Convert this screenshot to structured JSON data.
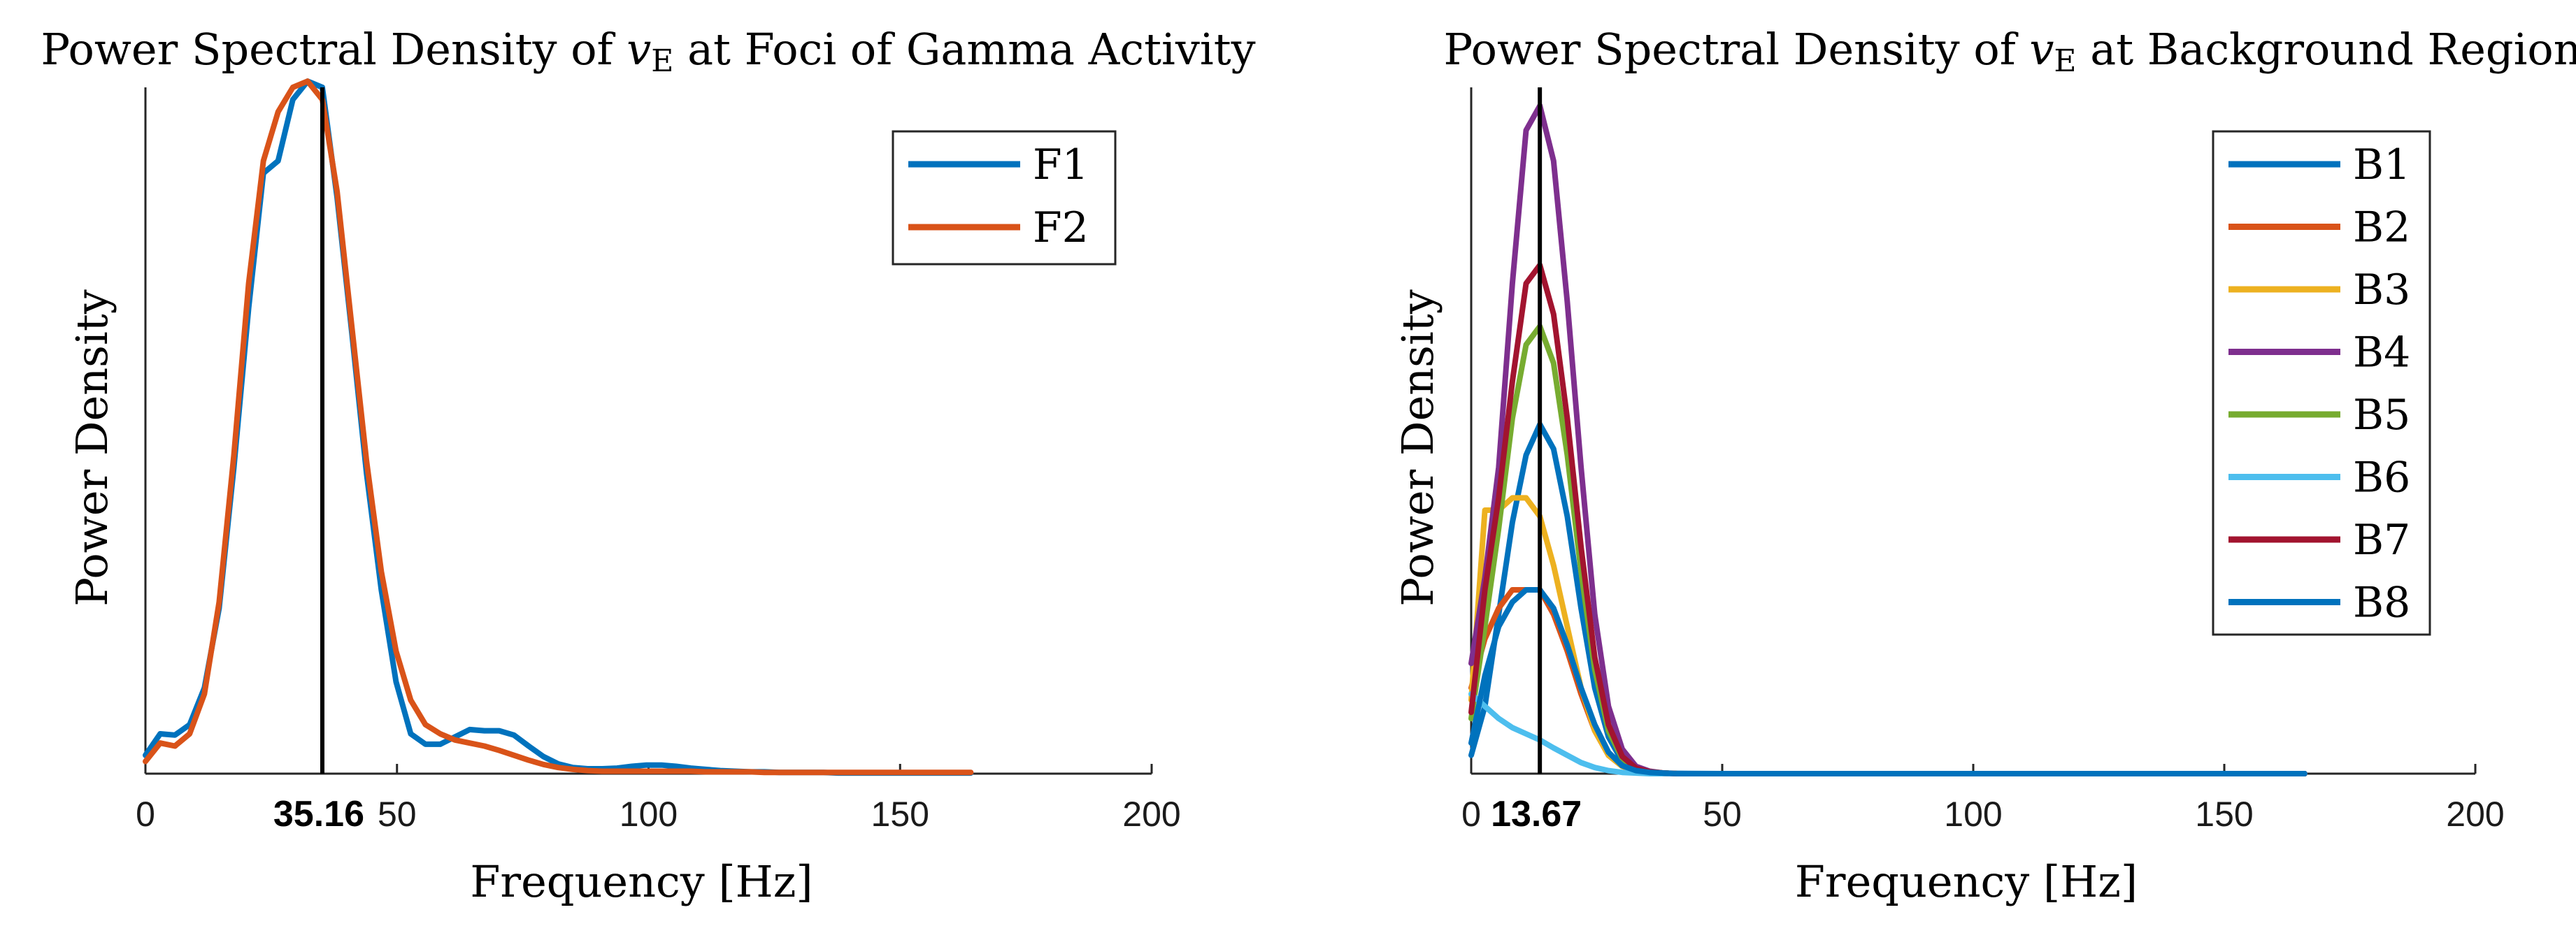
{
  "chart_data": [
    {
      "type": "line",
      "title_prefix": "Power Spectral Density of ",
      "title_var": "v",
      "title_sub": "E",
      "title_suffix": " at Foci of Gamma Activity",
      "xlabel": "Frequency [Hz]",
      "ylabel": "Power Density",
      "xlim": [
        0,
        200
      ],
      "ylim": [
        0,
        1.12
      ],
      "xticks": [
        0,
        50,
        100,
        150,
        200
      ],
      "xtick_labels": [
        "0",
        "50",
        "100",
        "150",
        "200"
      ],
      "marker_x": 35.16,
      "marker_label": "35.16",
      "legend_position": "top-right",
      "series": [
        {
          "name": "F1",
          "color": "#0072BD",
          "x": [
            0,
            2.93,
            5.86,
            8.79,
            11.72,
            14.65,
            17.58,
            20.51,
            23.44,
            26.37,
            29.3,
            32.23,
            35.16,
            38.09,
            41.02,
            43.95,
            46.88,
            49.81,
            52.73,
            55.66,
            58.59,
            61.52,
            64.45,
            67.38,
            70.31,
            73.24,
            76.17,
            79.1,
            82.03,
            84.96,
            87.89,
            90.82,
            93.75,
            96.68,
            99.61,
            102.54,
            105.47,
            108.4,
            111.33,
            114.26,
            117.19,
            120.12,
            123.05,
            125.98,
            128.91,
            131.84,
            134.77,
            137.7,
            140.63,
            143.55,
            146.48,
            149.41,
            152.34,
            155.27,
            158.2,
            161.13,
            164.06
          ],
          "y": [
            0.03,
            0.065,
            0.063,
            0.08,
            0.14,
            0.27,
            0.5,
            0.76,
            0.98,
            1.0,
            1.1,
            1.13,
            1.12,
            0.94,
            0.72,
            0.49,
            0.3,
            0.15,
            0.065,
            0.048,
            0.048,
            0.06,
            0.072,
            0.07,
            0.07,
            0.063,
            0.045,
            0.028,
            0.016,
            0.01,
            0.008,
            0.008,
            0.009,
            0.012,
            0.014,
            0.014,
            0.012,
            0.009,
            0.007,
            0.005,
            0.004,
            0.003,
            0.003,
            0.002,
            0.002,
            0.002,
            0.002,
            0.001,
            0.001,
            0.001,
            0.001,
            0.001,
            0.001,
            0.001,
            0.001,
            0.001,
            0.001
          ]
        },
        {
          "name": "F2",
          "color": "#D95319",
          "x": [
            0,
            2.93,
            5.86,
            8.79,
            11.72,
            14.65,
            17.58,
            20.51,
            23.44,
            26.37,
            29.3,
            32.23,
            35.16,
            38.09,
            41.02,
            43.95,
            46.88,
            49.81,
            52.73,
            55.66,
            58.59,
            61.52,
            64.45,
            67.38,
            70.31,
            73.24,
            76.17,
            79.1,
            82.03,
            84.96,
            87.89,
            90.82,
            93.75,
            96.68,
            99.61,
            102.54,
            105.47,
            108.4,
            111.33,
            114.26,
            117.19,
            120.12,
            123.05,
            125.98,
            128.91,
            131.84,
            134.77,
            137.7,
            140.63,
            143.55,
            146.48,
            149.41,
            152.34,
            155.27,
            158.2,
            161.13,
            164.06
          ],
          "y": [
            0.02,
            0.05,
            0.045,
            0.065,
            0.13,
            0.28,
            0.52,
            0.8,
            1.0,
            1.08,
            1.12,
            1.13,
            1.1,
            0.95,
            0.73,
            0.51,
            0.33,
            0.2,
            0.12,
            0.08,
            0.065,
            0.055,
            0.05,
            0.045,
            0.038,
            0.03,
            0.022,
            0.015,
            0.01,
            0.007,
            0.005,
            0.004,
            0.004,
            0.004,
            0.004,
            0.004,
            0.004,
            0.004,
            0.003,
            0.003,
            0.003,
            0.003,
            0.002,
            0.002,
            0.002,
            0.002,
            0.002,
            0.002,
            0.002,
            0.002,
            0.002,
            0.002,
            0.002,
            0.002,
            0.002,
            0.002,
            0.002
          ]
        }
      ]
    },
    {
      "type": "line",
      "title_prefix": "Power Spectral Density of ",
      "title_var": "v",
      "title_sub": "E",
      "title_suffix": " at Background Regions",
      "xlabel": "Frequency [Hz]",
      "ylabel": "Power Density",
      "xlim": [
        0,
        200
      ],
      "ylim": [
        0,
        1.12
      ],
      "xticks": [
        0,
        50,
        100,
        150,
        200
      ],
      "xtick_labels": [
        "0",
        "50",
        "100",
        "150",
        "200"
      ],
      "marker_x": 13.67,
      "marker_label": "13.67",
      "legend_position": "top-right",
      "series": [
        {
          "name": "B1",
          "color": "#0072BD",
          "x": [
            0,
            2.73,
            5.47,
            8.2,
            10.94,
            13.67,
            16.41,
            19.14,
            21.88,
            24.61,
            27.34,
            30.08,
            32.81,
            35.55,
            38.28,
            41.02,
            50,
            75,
            100,
            125,
            150,
            166
          ],
          "y": [
            0.03,
            0.11,
            0.26,
            0.41,
            0.52,
            0.57,
            0.53,
            0.42,
            0.27,
            0.14,
            0.06,
            0.02,
            0.008,
            0.003,
            0.001,
            0.0005,
            0,
            0,
            0,
            0,
            0,
            0
          ]
        },
        {
          "name": "B2",
          "color": "#D95319",
          "x": [
            0,
            2.73,
            5.47,
            8.2,
            10.94,
            13.67,
            16.41,
            19.14,
            21.88,
            24.61,
            27.34,
            30.08,
            32.81,
            35.55,
            38.28,
            41.02,
            50,
            75,
            100,
            125,
            150,
            166
          ],
          "y": [
            0.14,
            0.22,
            0.27,
            0.3,
            0.3,
            0.3,
            0.26,
            0.2,
            0.13,
            0.07,
            0.03,
            0.012,
            0.004,
            0.002,
            0.001,
            0,
            0,
            0,
            0,
            0,
            0,
            0
          ]
        },
        {
          "name": "B3",
          "color": "#EDB120",
          "x": [
            0,
            2.73,
            5.47,
            8.2,
            10.94,
            13.67,
            16.41,
            19.14,
            21.88,
            24.61,
            27.34,
            30.08,
            32.81,
            35.55,
            38.28,
            41.02,
            50,
            75,
            100,
            125,
            150,
            166
          ],
          "y": [
            0.12,
            0.43,
            0.43,
            0.45,
            0.45,
            0.42,
            0.34,
            0.24,
            0.14,
            0.07,
            0.03,
            0.012,
            0.004,
            0.002,
            0.001,
            0,
            0,
            0,
            0,
            0,
            0,
            0
          ]
        },
        {
          "name": "B4",
          "color": "#7E2F8E",
          "x": [
            0,
            2.73,
            5.47,
            8.2,
            10.94,
            13.67,
            16.41,
            19.14,
            21.88,
            24.61,
            27.34,
            30.08,
            32.81,
            35.55,
            38.28,
            41.02,
            50,
            75,
            100,
            125,
            150,
            166
          ],
          "y": [
            0.18,
            0.32,
            0.5,
            0.8,
            1.05,
            1.09,
            1.0,
            0.77,
            0.5,
            0.26,
            0.11,
            0.04,
            0.012,
            0.004,
            0.001,
            0,
            0,
            0,
            0,
            0,
            0,
            0
          ]
        },
        {
          "name": "B5",
          "color": "#77AC30",
          "x": [
            0,
            2.73,
            5.47,
            8.2,
            10.94,
            13.67,
            16.41,
            19.14,
            21.88,
            24.61,
            27.34,
            30.08,
            32.81,
            35.55,
            38.28,
            41.02,
            50,
            75,
            100,
            125,
            150,
            166
          ],
          "y": [
            0.09,
            0.24,
            0.4,
            0.58,
            0.7,
            0.73,
            0.67,
            0.52,
            0.33,
            0.17,
            0.07,
            0.025,
            0.008,
            0.003,
            0.001,
            0,
            0,
            0,
            0,
            0,
            0,
            0
          ]
        },
        {
          "name": "B6",
          "color": "#4DBEEE",
          "x": [
            0,
            2.73,
            5.47,
            8.2,
            10.94,
            13.67,
            16.41,
            19.14,
            21.88,
            24.61,
            27.34,
            30.08,
            32.81,
            35.55,
            38.28,
            41.02,
            50,
            75,
            100,
            125,
            150,
            166
          ],
          "y": [
            0.13,
            0.11,
            0.09,
            0.075,
            0.065,
            0.055,
            0.042,
            0.03,
            0.018,
            0.01,
            0.005,
            0.002,
            0.001,
            0,
            0,
            0,
            0,
            0,
            0,
            0,
            0,
            0
          ]
        },
        {
          "name": "B7",
          "color": "#A2142F",
          "x": [
            0,
            2.73,
            5.47,
            8.2,
            10.94,
            13.67,
            16.41,
            19.14,
            21.88,
            24.61,
            27.34,
            30.08,
            32.81,
            35.55,
            38.28,
            41.02,
            50,
            75,
            100,
            125,
            150,
            166
          ],
          "y": [
            0.1,
            0.3,
            0.45,
            0.64,
            0.8,
            0.83,
            0.75,
            0.58,
            0.37,
            0.19,
            0.08,
            0.028,
            0.009,
            0.003,
            0.001,
            0,
            0,
            0,
            0,
            0,
            0,
            0
          ]
        },
        {
          "name": "B8",
          "color": "#0072BD",
          "x": [
            0,
            2.73,
            5.47,
            8.2,
            10.94,
            13.67,
            16.41,
            19.14,
            21.88,
            24.61,
            27.34,
            30.08,
            32.81,
            35.55,
            38.28,
            41.02,
            50,
            75,
            100,
            125,
            150,
            166
          ],
          "y": [
            0.05,
            0.16,
            0.24,
            0.28,
            0.3,
            0.3,
            0.27,
            0.21,
            0.14,
            0.08,
            0.035,
            0.013,
            0.005,
            0.002,
            0.001,
            0,
            0,
            0,
            0,
            0,
            0,
            0
          ]
        }
      ]
    }
  ]
}
